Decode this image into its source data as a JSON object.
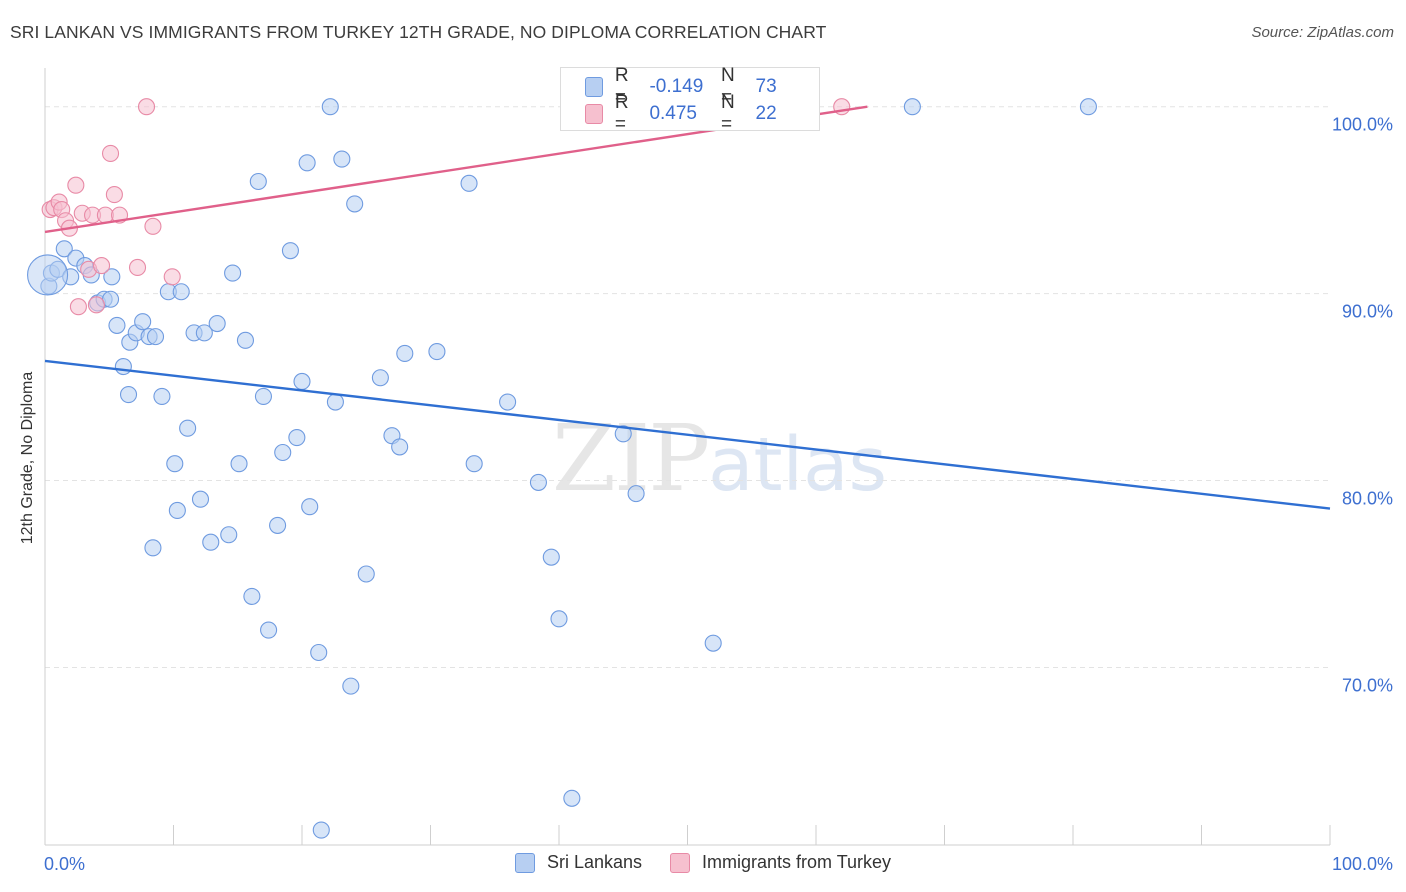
{
  "title": "SRI LANKAN VS IMMIGRANTS FROM TURKEY 12TH GRADE, NO DIPLOMA CORRELATION CHART",
  "source": "Source: ZipAtlas.com",
  "watermark": {
    "zip": "ZIP",
    "atlas": "atlas"
  },
  "legend_top": {
    "rows": [
      {
        "label": "R =",
        "r": "-0.149",
        "n_label": "N =",
        "n": "73"
      },
      {
        "label": "R =",
        "r": "0.475",
        "n_label": "N =",
        "n": "22"
      }
    ]
  },
  "legend_bottom": [
    "Sri Lankans",
    "Immigrants from Turkey"
  ],
  "colors": {
    "blue_fill": "#b7cff2",
    "blue_stroke": "#6f9be0",
    "blue_line": "#2f6fd2",
    "pink_fill": "#f6c0cf",
    "pink_stroke": "#e88aa6",
    "pink_line": "#e0608a",
    "grid": "#e3e3e3",
    "tick_label": "#3d6fd0"
  },
  "chart_data": {
    "type": "scatter",
    "title": "SRI LANKAN VS IMMIGRANTS FROM TURKEY 12TH GRADE, NO DIPLOMA CORRELATION CHART",
    "xlabel": "",
    "ylabel": "12th Grade, No Diploma",
    "xlim": [
      0,
      100
    ],
    "ylim": [
      60.5,
      102.5
    ],
    "x_tick_labels": [
      "0.0%",
      "100.0%"
    ],
    "y_ticks": [
      70,
      80,
      90,
      100
    ],
    "y_tick_labels": [
      "70.0%",
      "80.0%",
      "90.0%",
      "100.0%"
    ],
    "series": [
      {
        "name": "Sri Lankans",
        "color": "#6f9be0",
        "trend": {
          "x": [
            0,
            100
          ],
          "y": [
            86.4,
            78.5
          ]
        },
        "points": [
          [
            0.3,
            90.4
          ],
          [
            0.5,
            91.1
          ],
          [
            1.0,
            91.3
          ],
          [
            1.5,
            92.4
          ],
          [
            2.0,
            90.9
          ],
          [
            2.4,
            91.9
          ],
          [
            3.1,
            91.5
          ],
          [
            3.6,
            91.0
          ],
          [
            4.1,
            89.5
          ],
          [
            4.6,
            89.7
          ],
          [
            5.1,
            89.7
          ],
          [
            5.2,
            90.9
          ],
          [
            5.6,
            88.3
          ],
          [
            6.1,
            86.1
          ],
          [
            6.5,
            84.6
          ],
          [
            6.6,
            87.4
          ],
          [
            7.1,
            87.9
          ],
          [
            7.6,
            88.5
          ],
          [
            8.1,
            87.7
          ],
          [
            8.4,
            76.4
          ],
          [
            8.6,
            87.7
          ],
          [
            9.1,
            84.5
          ],
          [
            9.6,
            90.1
          ],
          [
            10.1,
            80.9
          ],
          [
            10.3,
            78.4
          ],
          [
            10.6,
            90.1
          ],
          [
            11.1,
            82.8
          ],
          [
            11.6,
            87.9
          ],
          [
            12.1,
            79.0
          ],
          [
            12.4,
            87.9
          ],
          [
            12.9,
            76.7
          ],
          [
            13.4,
            88.4
          ],
          [
            14.3,
            77.1
          ],
          [
            14.6,
            91.1
          ],
          [
            15.1,
            80.9
          ],
          [
            15.6,
            87.5
          ],
          [
            16.1,
            73.8
          ],
          [
            16.6,
            96.0
          ],
          [
            17.0,
            84.5
          ],
          [
            17.4,
            72.0
          ],
          [
            18.1,
            77.6
          ],
          [
            18.5,
            81.5
          ],
          [
            19.1,
            92.3
          ],
          [
            19.6,
            82.3
          ],
          [
            20.0,
            85.3
          ],
          [
            20.4,
            97.0
          ],
          [
            20.6,
            78.6
          ],
          [
            21.3,
            70.8
          ],
          [
            21.5,
            61.3
          ],
          [
            22.2,
            100.0
          ],
          [
            22.6,
            84.2
          ],
          [
            23.1,
            97.2
          ],
          [
            23.8,
            69.0
          ],
          [
            24.1,
            94.8
          ],
          [
            25.0,
            75.0
          ],
          [
            26.1,
            85.5
          ],
          [
            27.0,
            82.4
          ],
          [
            27.6,
            81.8
          ],
          [
            28.0,
            86.8
          ],
          [
            30.5,
            86.9
          ],
          [
            33.0,
            95.9
          ],
          [
            33.4,
            80.9
          ],
          [
            36.0,
            84.2
          ],
          [
            38.4,
            79.9
          ],
          [
            39.4,
            75.9
          ],
          [
            40.0,
            72.6
          ],
          [
            41.0,
            63.0
          ],
          [
            45.0,
            82.5
          ],
          [
            46.0,
            79.3
          ],
          [
            52.0,
            71.3
          ],
          [
            67.5,
            100.0
          ],
          [
            81.2,
            100.0
          ],
          [
            0.2,
            91.0
          ]
        ]
      },
      {
        "name": "Immigrants from Turkey",
        "color": "#e88aa6",
        "trend": {
          "x": [
            0,
            64.0
          ],
          "y": [
            93.3,
            100.0
          ]
        },
        "points": [
          [
            0.4,
            94.5
          ],
          [
            0.7,
            94.6
          ],
          [
            1.1,
            94.9
          ],
          [
            1.3,
            94.5
          ],
          [
            1.6,
            93.9
          ],
          [
            1.9,
            93.5
          ],
          [
            2.4,
            95.8
          ],
          [
            2.6,
            89.3
          ],
          [
            2.9,
            94.3
          ],
          [
            3.4,
            91.3
          ],
          [
            3.7,
            94.2
          ],
          [
            4.0,
            89.4
          ],
          [
            4.4,
            91.5
          ],
          [
            4.7,
            94.2
          ],
          [
            5.1,
            97.5
          ],
          [
            5.4,
            95.3
          ],
          [
            5.8,
            94.2
          ],
          [
            7.2,
            91.4
          ],
          [
            7.9,
            100.0
          ],
          [
            8.4,
            93.6
          ],
          [
            9.9,
            90.9
          ],
          [
            62.0,
            100.0
          ]
        ]
      }
    ]
  }
}
